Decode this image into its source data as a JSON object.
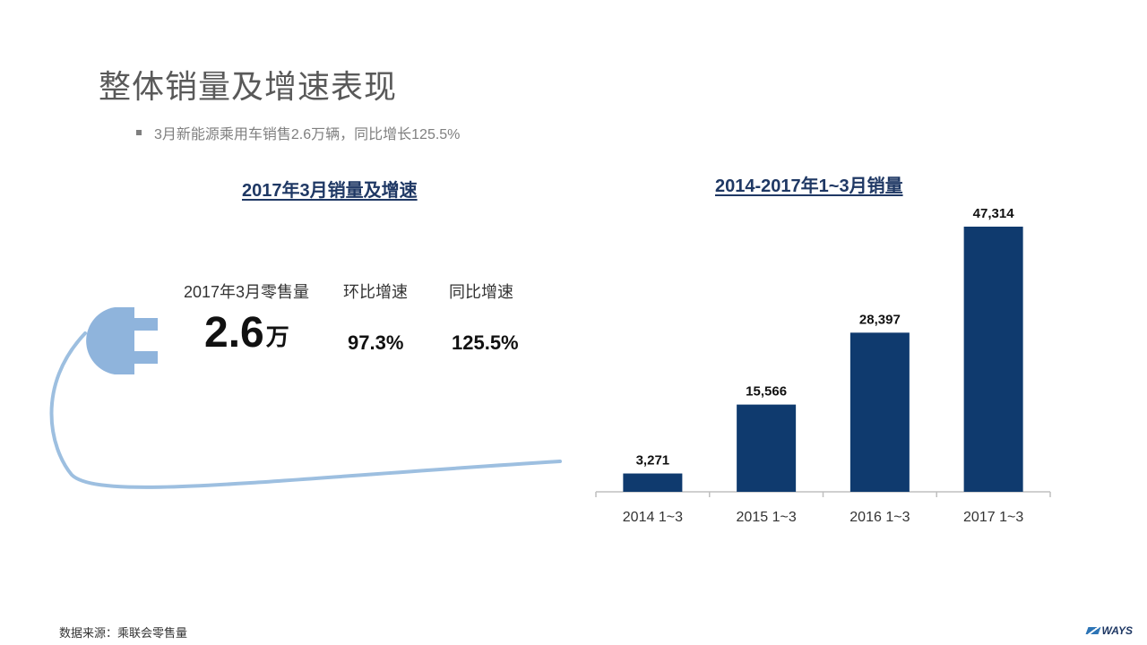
{
  "slide": {
    "title": "整体销量及增速表现",
    "bullet": "3月新能源乘用车销售2.6万辆，同比增长125.5%",
    "source": "数据来源：乘联会零售量",
    "brand": "WAYS"
  },
  "left_panel": {
    "title": "2017年3月销量及增速",
    "kpis": [
      {
        "label": "2017年3月零售量",
        "value": "2.6",
        "unit": "万"
      },
      {
        "label": "环比增速",
        "value": "97.3%"
      },
      {
        "label": "同比增速",
        "value": "125.5%"
      }
    ],
    "plug_icon": "power-plug-icon"
  },
  "chart_data": {
    "type": "bar",
    "title": "2014-2017年1~3月销量",
    "categories": [
      "2014 1~3",
      "2015 1~3",
      "2016 1~3",
      "2017 1~3"
    ],
    "values": [
      3271,
      15566,
      28397,
      47314
    ],
    "data_labels": [
      "3,271",
      "15,566",
      "28,397",
      "47,314"
    ],
    "ylim": [
      0,
      47314
    ],
    "grid": false,
    "bar_color": "#0f3a6e"
  },
  "colors": {
    "title_blue": "#1f3864",
    "plug_blue": "#8fb4dc"
  }
}
